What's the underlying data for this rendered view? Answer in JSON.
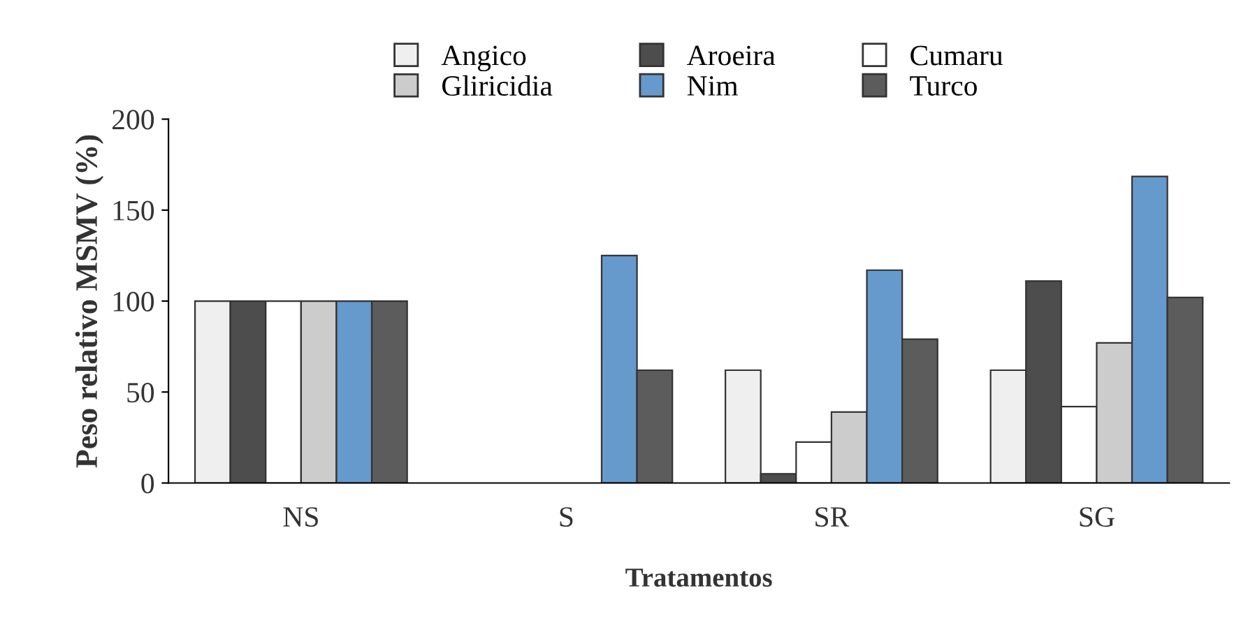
{
  "chart_data": {
    "type": "bar",
    "xlabel": "Tratamentos",
    "ylabel": "Peso relativo MSMV (%)",
    "categories": [
      "NS",
      "S",
      "SR",
      "SG"
    ],
    "series": [
      {
        "name": "Angico",
        "color": "#efefef",
        "values": [
          100,
          null,
          62,
          62
        ]
      },
      {
        "name": "Aroeira",
        "color": "#4d4d4d",
        "values": [
          100,
          null,
          5,
          111
        ]
      },
      {
        "name": "Cumaru",
        "color": "#ffffff",
        "values": [
          100,
          null,
          22.5,
          42
        ]
      },
      {
        "name": "Gliricidia",
        "color": "#cccccc",
        "values": [
          100,
          null,
          39,
          77
        ]
      },
      {
        "name": "Nim",
        "color": "#6699cc",
        "values": [
          100,
          125,
          117,
          168.5
        ]
      },
      {
        "name": "Turco",
        "color": "#5c5c5c",
        "values": [
          100,
          62,
          79,
          102
        ]
      }
    ],
    "ylim": [
      0,
      200
    ],
    "yticks": [
      0,
      50,
      100,
      150,
      200
    ],
    "grid": false,
    "legend": "top"
  }
}
